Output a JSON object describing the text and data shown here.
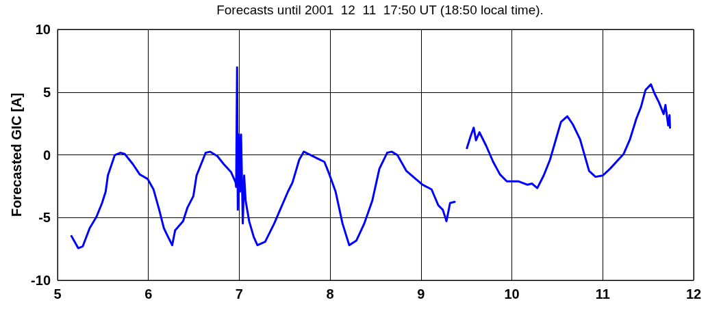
{
  "chart_data": {
    "type": "line",
    "title": "Forecasts until 2001  12  11  17:50 UT (18:50 local time).",
    "ylabel": "Forecasted GIC [A]",
    "xlim": [
      5,
      12
    ],
    "xticks": [
      5,
      6,
      7,
      8,
      9,
      10,
      11,
      12
    ],
    "ylim": [
      -10,
      10
    ],
    "yticks": [
      -10,
      -5,
      0,
      5,
      10
    ],
    "grid": true,
    "marker": "none",
    "line_style": "solid",
    "series": [
      {
        "color": "#0000ff",
        "x": [
          5.153,
          5.228,
          5.278,
          5.354,
          5.429,
          5.49,
          5.53,
          5.554,
          5.63,
          5.69,
          5.74,
          5.83,
          5.905,
          5.993,
          6.056,
          6.119,
          6.17,
          6.206,
          6.262,
          6.294,
          6.382,
          6.43,
          6.495,
          6.53,
          6.57,
          6.63,
          6.68,
          6.76,
          6.83,
          6.91,
          6.96,
          6.966,
          6.976,
          6.984,
          6.996,
          7.009,
          7.02,
          7.039,
          7.054,
          7.07,
          7.109,
          7.16,
          7.2,
          7.285,
          7.385,
          7.46,
          7.536,
          7.586,
          7.66,
          7.71,
          7.786,
          7.861,
          7.937,
          7.987,
          8.06,
          8.136,
          8.21,
          8.288,
          8.376,
          8.464,
          8.542,
          8.627,
          8.677,
          8.74,
          8.84,
          9.016,
          9.116,
          9.19,
          9.24,
          9.28,
          9.32,
          9.37,
          9.44,
          9.505,
          9.544,
          9.58,
          9.605,
          9.643,
          9.718,
          9.794,
          9.869,
          9.944,
          10.07,
          10.17,
          10.22,
          10.28,
          10.35,
          10.42,
          10.5,
          10.54,
          10.61,
          10.67,
          10.75,
          10.8,
          10.85,
          10.92,
          11.0,
          11.08,
          11.15,
          11.23,
          11.3,
          11.37,
          11.42,
          11.47,
          11.53,
          11.57,
          11.62,
          11.67,
          11.69,
          11.72,
          11.735,
          11.74
        ],
        "values": [
          -6.47,
          -7.44,
          -7.29,
          -5.84,
          -4.93,
          -3.84,
          -2.93,
          -1.65,
          -0.02,
          0.16,
          0.07,
          -0.75,
          -1.56,
          -1.93,
          -2.75,
          -4.38,
          -5.84,
          -6.38,
          -7.2,
          -6.02,
          -5.29,
          -4.2,
          -3.29,
          -1.65,
          -0.93,
          0.16,
          0.25,
          -0.11,
          -0.75,
          -1.38,
          -2.2,
          -2.56,
          6.98,
          -4.38,
          1.62,
          -2.93,
          1.62,
          -5.47,
          -1.65,
          -3.65,
          -5.29,
          -6.56,
          -7.2,
          -6.93,
          -5.47,
          -4.2,
          -2.93,
          -2.2,
          -0.38,
          0.25,
          -0.02,
          -0.29,
          -0.56,
          -1.47,
          -2.93,
          -5.47,
          -7.2,
          -6.84,
          -5.47,
          -3.65,
          -1.11,
          0.16,
          0.25,
          -0.02,
          -1.29,
          -2.38,
          -2.75,
          -4.02,
          -4.38,
          -5.29,
          -3.84,
          -3.75,
          null,
          0.53,
          1.44,
          2.16,
          1.16,
          1.8,
          0.71,
          -0.56,
          -1.56,
          -2.11,
          -2.11,
          -2.38,
          -2.29,
          -2.65,
          -1.65,
          -0.38,
          1.62,
          2.62,
          3.07,
          2.44,
          1.25,
          -0.02,
          -1.29,
          -1.75,
          -1.65,
          -1.11,
          -0.56,
          0.07,
          1.25,
          2.89,
          3.8,
          5.16,
          5.62,
          4.89,
          4.16,
          3.25,
          3.98,
          2.35,
          3.16,
          2.16
        ]
      }
    ]
  }
}
